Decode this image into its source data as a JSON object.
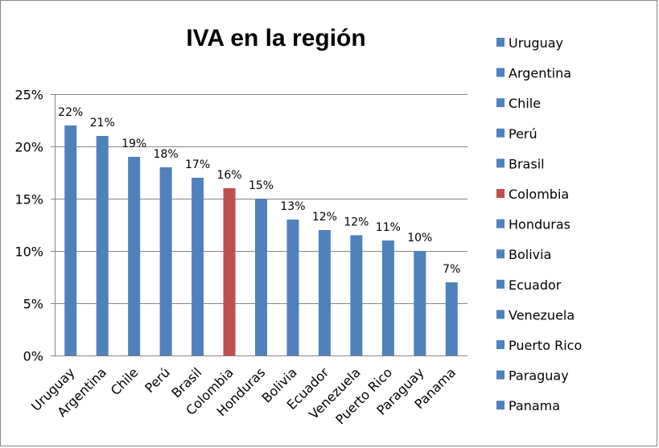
{
  "chart_data": {
    "type": "bar",
    "title": "IVA en la región",
    "categories": [
      "Uruguay",
      "Argentina",
      "Chile",
      "Perú",
      "Brasil",
      "Colombia",
      "Honduras",
      "Bolivia",
      "Ecuador",
      "Venezuela",
      "Puerto Rico",
      "Paraguay",
      "Panama"
    ],
    "values": [
      22,
      21,
      19,
      18,
      17,
      16,
      15,
      13,
      12,
      11.5,
      11,
      10,
      7
    ],
    "data_labels": [
      "22%",
      "21%",
      "19%",
      "18%",
      "17%",
      "16%",
      "15%",
      "13%",
      "12%",
      "12%",
      "11%",
      "10%",
      "7%"
    ],
    "ylim": [
      0,
      25
    ],
    "yticks": [
      "0%",
      "5%",
      "10%",
      "15%",
      "20%",
      "25%"
    ],
    "grid": true,
    "legend_position": "right",
    "colors": {
      "default": "#4F81BD",
      "highlight": "#C0504D",
      "grid": "#868686",
      "axis": "#868686"
    },
    "highlight_category": "Colombia"
  }
}
